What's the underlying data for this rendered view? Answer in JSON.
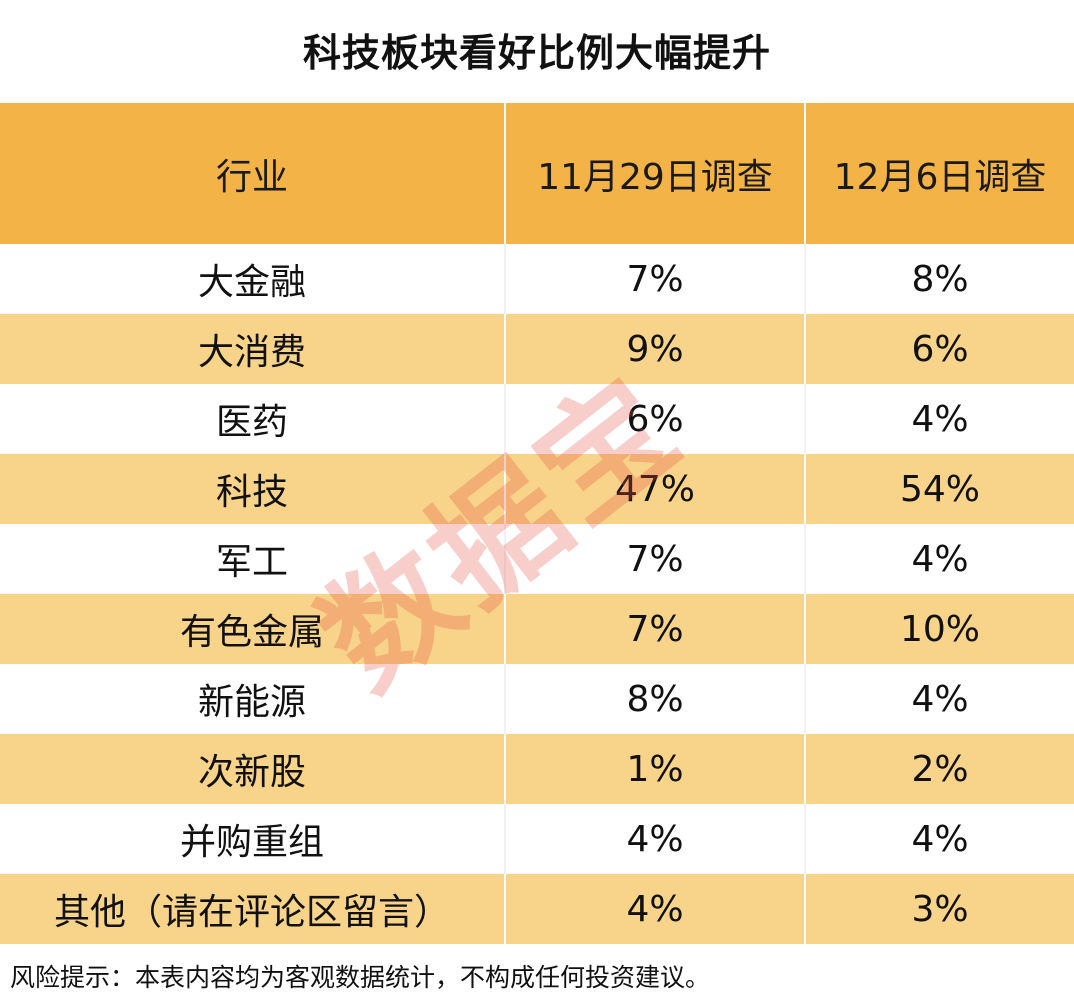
{
  "title": "科技板块看好比例大幅提升",
  "table": {
    "headers": [
      "行业",
      "11月29日调查",
      "12月6日调查"
    ],
    "rows": [
      {
        "industry": "大金融",
        "nov29": "7%",
        "dec6": "8%"
      },
      {
        "industry": "大消费",
        "nov29": "9%",
        "dec6": "6%"
      },
      {
        "industry": "医药",
        "nov29": "6%",
        "dec6": "4%"
      },
      {
        "industry": "科技",
        "nov29": "47%",
        "dec6": "54%"
      },
      {
        "industry": "军工",
        "nov29": "7%",
        "dec6": "4%"
      },
      {
        "industry": "有色金属",
        "nov29": "7%",
        "dec6": "10%"
      },
      {
        "industry": "新能源",
        "nov29": "8%",
        "dec6": "4%"
      },
      {
        "industry": "次新股",
        "nov29": "1%",
        "dec6": "2%"
      },
      {
        "industry": "并购重组",
        "nov29": "4%",
        "dec6": "4%"
      },
      {
        "industry": "其他（请在评论区留言）",
        "nov29": "4%",
        "dec6": "3%"
      }
    ]
  },
  "footer": "风险提示：本表内容均为客观数据统计，不构成任何投资建议。",
  "watermark": "数据宝",
  "colors": {
    "header_bg": "#f3b346",
    "stripe_bg": "#f8d38a",
    "watermark": "#e65046"
  },
  "chart_data": {
    "type": "table",
    "title": "科技板块看好比例大幅提升",
    "columns": [
      "行业",
      "11月29日调查",
      "12月6日调查"
    ],
    "categories": [
      "大金融",
      "大消费",
      "医药",
      "科技",
      "军工",
      "有色金属",
      "新能源",
      "次新股",
      "并购重组",
      "其他（请在评论区留言）"
    ],
    "series": [
      {
        "name": "11月29日调查",
        "values": [
          7,
          9,
          6,
          47,
          7,
          7,
          8,
          1,
          4,
          4
        ]
      },
      {
        "name": "12月6日调查",
        "values": [
          8,
          6,
          4,
          54,
          4,
          10,
          4,
          2,
          4,
          3
        ]
      }
    ]
  }
}
